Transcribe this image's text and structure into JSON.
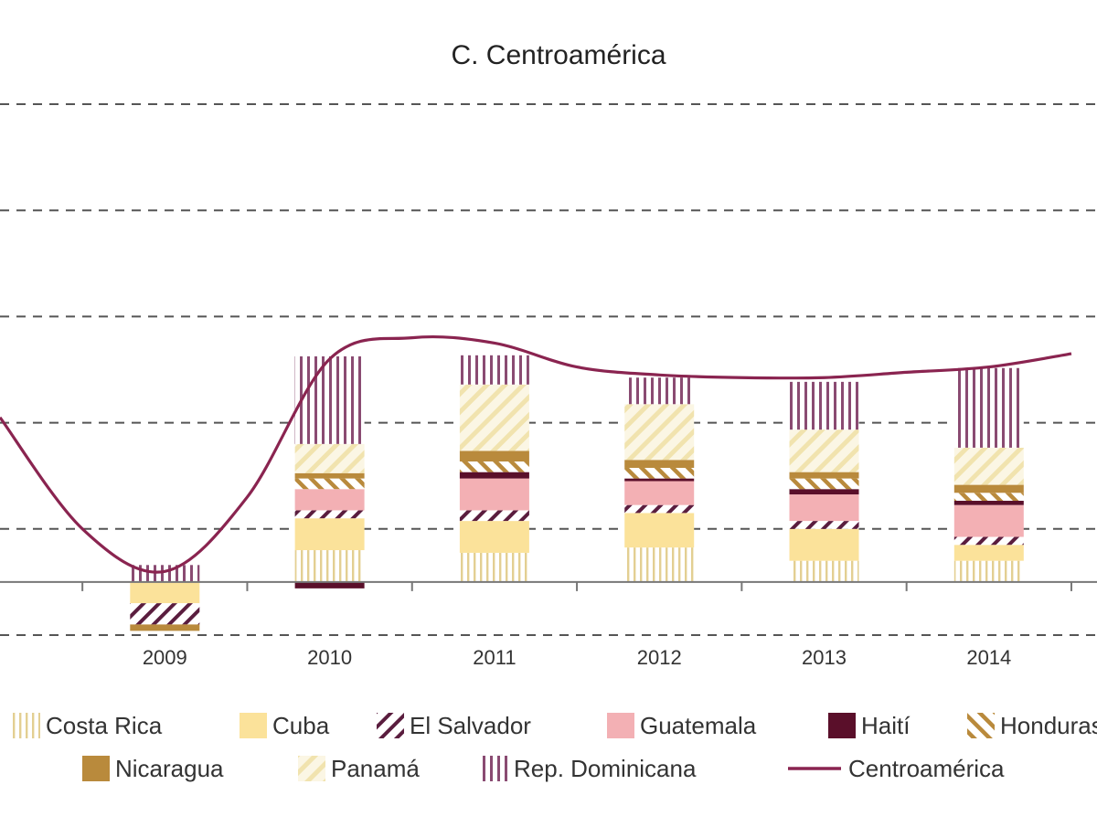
{
  "chart_data": {
    "type": "bar",
    "title": "C. Centroamérica",
    "x_tick_labels": [
      "2009",
      "2010",
      "2011",
      "2012",
      "2013",
      "2014"
    ],
    "grid": true,
    "stacked": true,
    "legend_placement": "bottom",
    "series": [
      {
        "name": "Costa Rica",
        "color": "#e8d9a6",
        "pattern": "vlines",
        "values": [
          0.0,
          0.6,
          0.55,
          0.65,
          0.4,
          0.4
        ]
      },
      {
        "name": "Cuba",
        "color": "#fbe29a",
        "pattern": "solid",
        "values": [
          -0.4,
          0.6,
          0.6,
          0.65,
          0.6,
          0.3
        ]
      },
      {
        "name": "El Salvador",
        "color": "#5a1d3e",
        "pattern": "diag",
        "values": [
          -0.4,
          0.15,
          0.2,
          0.15,
          0.15,
          0.15
        ]
      },
      {
        "name": "Guatemala",
        "color": "#f3b0b4",
        "pattern": "solid",
        "values": [
          0.0,
          0.4,
          0.6,
          0.45,
          0.5,
          0.6
        ]
      },
      {
        "name": "Haití",
        "color": "#5a0f2a",
        "pattern": "solid",
        "values": [
          0.0,
          -0.12,
          0.12,
          0.05,
          0.1,
          0.08
        ]
      },
      {
        "name": "Honduras",
        "color": "#b98a3c",
        "pattern": "diag2",
        "values": [
          0.0,
          0.2,
          0.2,
          0.2,
          0.2,
          0.15
        ]
      },
      {
        "name": "Nicaragua",
        "color": "#b98a3c",
        "pattern": "solid",
        "values": [
          -0.12,
          0.1,
          0.2,
          0.15,
          0.12,
          0.15
        ]
      },
      {
        "name": "Panamá",
        "color": "#f6ecc4",
        "pattern": "diag-light",
        "values": [
          0.0,
          0.55,
          1.25,
          1.05,
          0.8,
          0.7
        ]
      },
      {
        "name": "Rep. Dominicana",
        "color": "#8a4b72",
        "pattern": "vlines",
        "values": [
          0.32,
          1.65,
          0.55,
          0.5,
          0.9,
          1.5
        ]
      }
    ],
    "line_series": {
      "name": "Centroamérica",
      "color": "#8a2450",
      "points": [
        {
          "x": 2008,
          "y": 3.1
        },
        {
          "x": 2008.5,
          "y": 1.0
        },
        {
          "x": 2009,
          "y": 0.2
        },
        {
          "x": 2009.5,
          "y": 1.6
        },
        {
          "x": 2010,
          "y": 4.2
        },
        {
          "x": 2010.5,
          "y": 4.6
        },
        {
          "x": 2011,
          "y": 4.5
        },
        {
          "x": 2011.5,
          "y": 4.05
        },
        {
          "x": 2012,
          "y": 3.9
        },
        {
          "x": 2012.5,
          "y": 3.85
        },
        {
          "x": 2013,
          "y": 3.85
        },
        {
          "x": 2013.5,
          "y": 3.95
        },
        {
          "x": 2014,
          "y": 4.05
        },
        {
          "x": 2014.5,
          "y": 4.3
        }
      ]
    },
    "y_range": [
      -1,
      9
    ],
    "x_range": [
      2008,
      2014.6
    ]
  }
}
